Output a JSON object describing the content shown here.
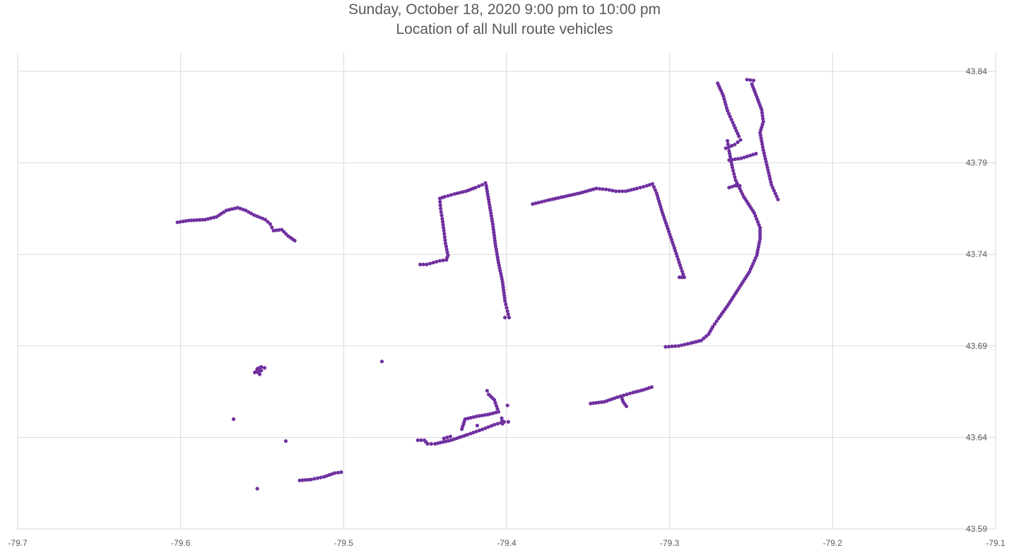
{
  "chart_data": {
    "type": "scatter",
    "title": "Sunday, October 18, 2020 9:00 pm to 10:00 pm",
    "subtitle": "Location of all Null route vehicles",
    "xlabel": "",
    "ylabel": "",
    "xlim": [
      -79.7,
      -79.1
    ],
    "ylim": [
      43.59,
      43.84
    ],
    "x_ticks": [
      -79.7,
      -79.6,
      -79.5,
      -79.4,
      -79.3,
      -79.2,
      -79.1
    ],
    "y_ticks": [
      43.59,
      43.64,
      43.69,
      43.74,
      43.79,
      43.84
    ],
    "x_tick_labels": [
      "-79.7",
      "-79.6",
      "-79.5",
      "-79.4",
      "-79.3",
      "-79.2",
      "-79.1"
    ],
    "y_tick_labels": [
      "43.59",
      "43.64",
      "43.69",
      "43.74",
      "43.79",
      "43.84"
    ],
    "grid": true,
    "y_axis_side": "right",
    "marker_color": "#7030A0",
    "tracks": [
      [
        [
          -79.602,
          43.7575
        ],
        [
          -79.595,
          43.7585
        ],
        [
          -79.585,
          43.759
        ],
        [
          -79.578,
          43.7605
        ],
        [
          -79.572,
          43.764
        ],
        [
          -79.565,
          43.7655
        ],
        [
          -79.56,
          43.764
        ],
        [
          -79.555,
          43.7615
        ],
        [
          -79.548,
          43.759
        ],
        [
          -79.545,
          43.7565
        ],
        [
          -79.543,
          43.753
        ],
        [
          -79.538,
          43.7535
        ],
        [
          -79.534,
          43.75
        ],
        [
          -79.53,
          43.7475
        ]
      ],
      [
        [
          -79.453,
          43.7345
        ],
        [
          -79.449,
          43.7345
        ],
        [
          -79.445,
          43.7355
        ],
        [
          -79.441,
          43.7365
        ],
        [
          -79.437,
          43.737
        ],
        [
          -79.436,
          43.7395
        ],
        [
          -79.4375,
          43.746
        ],
        [
          -79.4385,
          43.753
        ],
        [
          -79.4395,
          43.7595
        ],
        [
          -79.4405,
          43.765
        ],
        [
          -79.441,
          43.7705
        ],
        [
          -79.438,
          43.7715
        ],
        [
          -79.432,
          43.773
        ],
        [
          -79.425,
          43.7745
        ],
        [
          -79.419,
          43.7765
        ],
        [
          -79.415,
          43.778
        ]
      ],
      [
        [
          -79.413,
          43.779
        ],
        [
          -79.4125,
          43.7775
        ],
        [
          -79.4105,
          43.767
        ],
        [
          -79.4085,
          43.7565
        ],
        [
          -79.407,
          43.746
        ],
        [
          -79.405,
          43.7355
        ],
        [
          -79.4025,
          43.725
        ],
        [
          -79.401,
          43.7145
        ],
        [
          -79.3995,
          43.709
        ],
        [
          -79.3985,
          43.7055
        ],
        [
          -79.401,
          43.7055
        ]
      ],
      [
        [
          -79.384,
          43.7675
        ],
        [
          -79.375,
          43.7695
        ],
        [
          -79.365,
          43.7715
        ],
        [
          -79.355,
          43.7735
        ],
        [
          -79.345,
          43.776
        ],
        [
          -79.339,
          43.7755
        ],
        [
          -79.333,
          43.7745
        ],
        [
          -79.327,
          43.7745
        ],
        [
          -79.32,
          43.776
        ],
        [
          -79.314,
          43.7775
        ],
        [
          -79.3105,
          43.7785
        ],
        [
          -79.308,
          43.7735
        ],
        [
          -79.3045,
          43.763
        ],
        [
          -79.3005,
          43.7525
        ],
        [
          -79.2965,
          43.742
        ],
        [
          -79.293,
          43.7325
        ],
        [
          -79.291,
          43.7275
        ],
        [
          -79.294,
          43.7275
        ]
      ],
      [
        [
          -79.3025,
          43.6895
        ],
        [
          -79.2945,
          43.69
        ],
        [
          -79.287,
          43.6915
        ],
        [
          -79.2805,
          43.693
        ],
        [
          -79.276,
          43.6965
        ],
        [
          -79.2735,
          43.7005
        ],
        [
          -79.27,
          43.705
        ],
        [
          -79.264,
          43.7125
        ],
        [
          -79.2575,
          43.7215
        ],
        [
          -79.251,
          43.7305
        ],
        [
          -79.2465,
          43.7395
        ],
        [
          -79.2445,
          43.7485
        ],
        [
          -79.2445,
          43.7545
        ],
        [
          -79.248,
          43.7625
        ],
        [
          -79.2545,
          43.7715
        ],
        [
          -79.2595,
          43.7805
        ],
        [
          -79.2615,
          43.7875
        ],
        [
          -79.2635,
          43.7965
        ],
        [
          -79.2645,
          43.802
        ]
      ],
      [
        [
          -79.2705,
          43.8335
        ],
        [
          -79.267,
          43.8265
        ],
        [
          -79.2645,
          43.8185
        ],
        [
          -79.2605,
          43.8105
        ],
        [
          -79.2575,
          43.8045
        ]
      ],
      [
        [
          -79.2525,
          43.8355
        ],
        [
          -79.2485,
          43.835
        ],
        [
          -79.2495,
          43.833
        ],
        [
          -79.2465,
          43.826
        ],
        [
          -79.2435,
          43.819
        ],
        [
          -79.2425,
          43.8125
        ],
        [
          -79.2445,
          43.8065
        ],
        [
          -79.2425,
          43.797
        ],
        [
          -79.24,
          43.7875
        ],
        [
          -79.2375,
          43.778
        ],
        [
          -79.2335,
          43.77
        ]
      ],
      [
        [
          -79.2655,
          43.798
        ],
        [
          -79.26,
          43.8
        ],
        [
          -79.2565,
          43.8025
        ]
      ],
      [
        [
          -79.2635,
          43.7915
        ],
        [
          -79.256,
          43.7925
        ],
        [
          -79.247,
          43.795
        ]
      ],
      [
        [
          -79.2635,
          43.7765
        ],
        [
          -79.26,
          43.7775
        ],
        [
          -79.257,
          43.7775
        ]
      ],
      [
        [
          -79.553,
          43.6775
        ],
        [
          -79.5505,
          43.6785
        ],
        [
          -79.5485,
          43.678
        ],
        [
          -79.5505,
          43.6765
        ],
        [
          -79.5515,
          43.6745
        ],
        [
          -79.5525,
          43.6755
        ],
        [
          -79.5535,
          43.676
        ],
        [
          -79.5545,
          43.6755
        ],
        [
          -79.552,
          43.676
        ]
      ],
      [
        [
          -79.527,
          43.6165
        ],
        [
          -79.52,
          43.617
        ],
        [
          -79.512,
          43.6185
        ],
        [
          -79.5055,
          43.6205
        ],
        [
          -79.5015,
          43.621
        ]
      ],
      [
        [
          -79.4545,
          43.6385
        ],
        [
          -79.4505,
          43.6385
        ],
        [
          -79.4485,
          43.6365
        ],
        [
          -79.444,
          43.6365
        ],
        [
          -79.434,
          43.6385
        ],
        [
          -79.424,
          43.6415
        ],
        [
          -79.413,
          43.645
        ],
        [
          -79.4075,
          43.647
        ],
        [
          -79.4015,
          43.6485
        ],
        [
          -79.399,
          43.6485
        ]
      ],
      [
        [
          -79.4385,
          43.6395
        ],
        [
          -79.4345,
          43.6405
        ]
      ],
      [
        [
          -79.4275,
          43.6445
        ],
        [
          -79.4255,
          43.65
        ],
        [
          -79.4185,
          43.6515
        ],
        [
          -79.4115,
          43.6525
        ],
        [
          -79.405,
          43.654
        ],
        [
          -79.4075,
          43.6605
        ],
        [
          -79.411,
          43.6635
        ],
        [
          -79.412,
          43.6655
        ]
      ],
      [
        [
          -79.4025,
          43.6475
        ],
        [
          -79.403,
          43.6505
        ]
      ],
      [
        [
          -79.418,
          43.6465
        ]
      ],
      [
        [
          -79.3485,
          43.6585
        ],
        [
          -79.34,
          43.6595
        ],
        [
          -79.332,
          43.662
        ],
        [
          -79.3225,
          43.6645
        ],
        [
          -79.316,
          43.666
        ],
        [
          -79.311,
          43.6675
        ]
      ],
      [
        [
          -79.3295,
          43.662
        ],
        [
          -79.3285,
          43.6595
        ],
        [
          -79.3265,
          43.657
        ]
      ],
      [
        [
          -79.4765,
          43.6815
        ]
      ],
      [
        [
          -79.5675,
          43.65
        ]
      ],
      [
        [
          -79.5355,
          43.638
        ]
      ],
      [
        [
          -79.553,
          43.612
        ]
      ],
      [
        [
          -79.3995,
          43.6575
        ]
      ]
    ]
  }
}
